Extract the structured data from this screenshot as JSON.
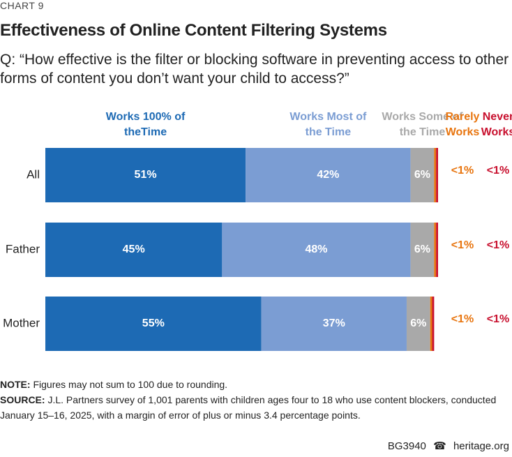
{
  "chart_label": "CHART 9",
  "chart_data": {
    "type": "stacked-bar",
    "orientation": "horizontal",
    "title": "Effectiveness of Online Content Filtering Systems",
    "subtitle": "Q: “How effective is the filter or blocking software in preventing access to other forms of content you don’t want your child to access?”",
    "categories": [
      "All",
      "Father",
      "Mother"
    ],
    "series": [
      {
        "name": "Works 100% of theTime",
        "color": "#1d6ab4",
        "values": [
          51,
          45,
          55
        ],
        "value_labels": [
          "51%",
          "45%",
          "55%"
        ]
      },
      {
        "name": "Works Most of the Time",
        "color": "#7b9dd3",
        "values": [
          42,
          48,
          37
        ],
        "value_labels": [
          "42%",
          "48%",
          "37%"
        ]
      },
      {
        "name": "Works Some of the Time",
        "color": "#a9a9a9",
        "values": [
          6,
          6,
          6
        ],
        "value_labels": [
          "6%",
          "6%",
          "6%"
        ]
      },
      {
        "name": "Rarely Works",
        "color": "#e8750f",
        "values": [
          0.5,
          0.5,
          0.5
        ],
        "value_labels": [
          "<1%",
          "<1%",
          "<1%"
        ]
      },
      {
        "name": "Never Works",
        "color": "#c8102e",
        "values": [
          0.5,
          0.5,
          0.5
        ],
        "value_labels": [
          "<1%",
          "<1%",
          "<1%"
        ]
      }
    ]
  },
  "note": {
    "label": "NOTE:",
    "text": "Figures may not sum to 100 due to rounding."
  },
  "source": {
    "label": "SOURCE:",
    "text": "J.L. Partners survey of 1,001 parents with children ages four to 18 who use content blockers, conducted January 15–16, 2025, with a margin of error of plus or minus 3.4 percentage points."
  },
  "footer": {
    "code": "BG3940",
    "site": "heritage.org"
  }
}
